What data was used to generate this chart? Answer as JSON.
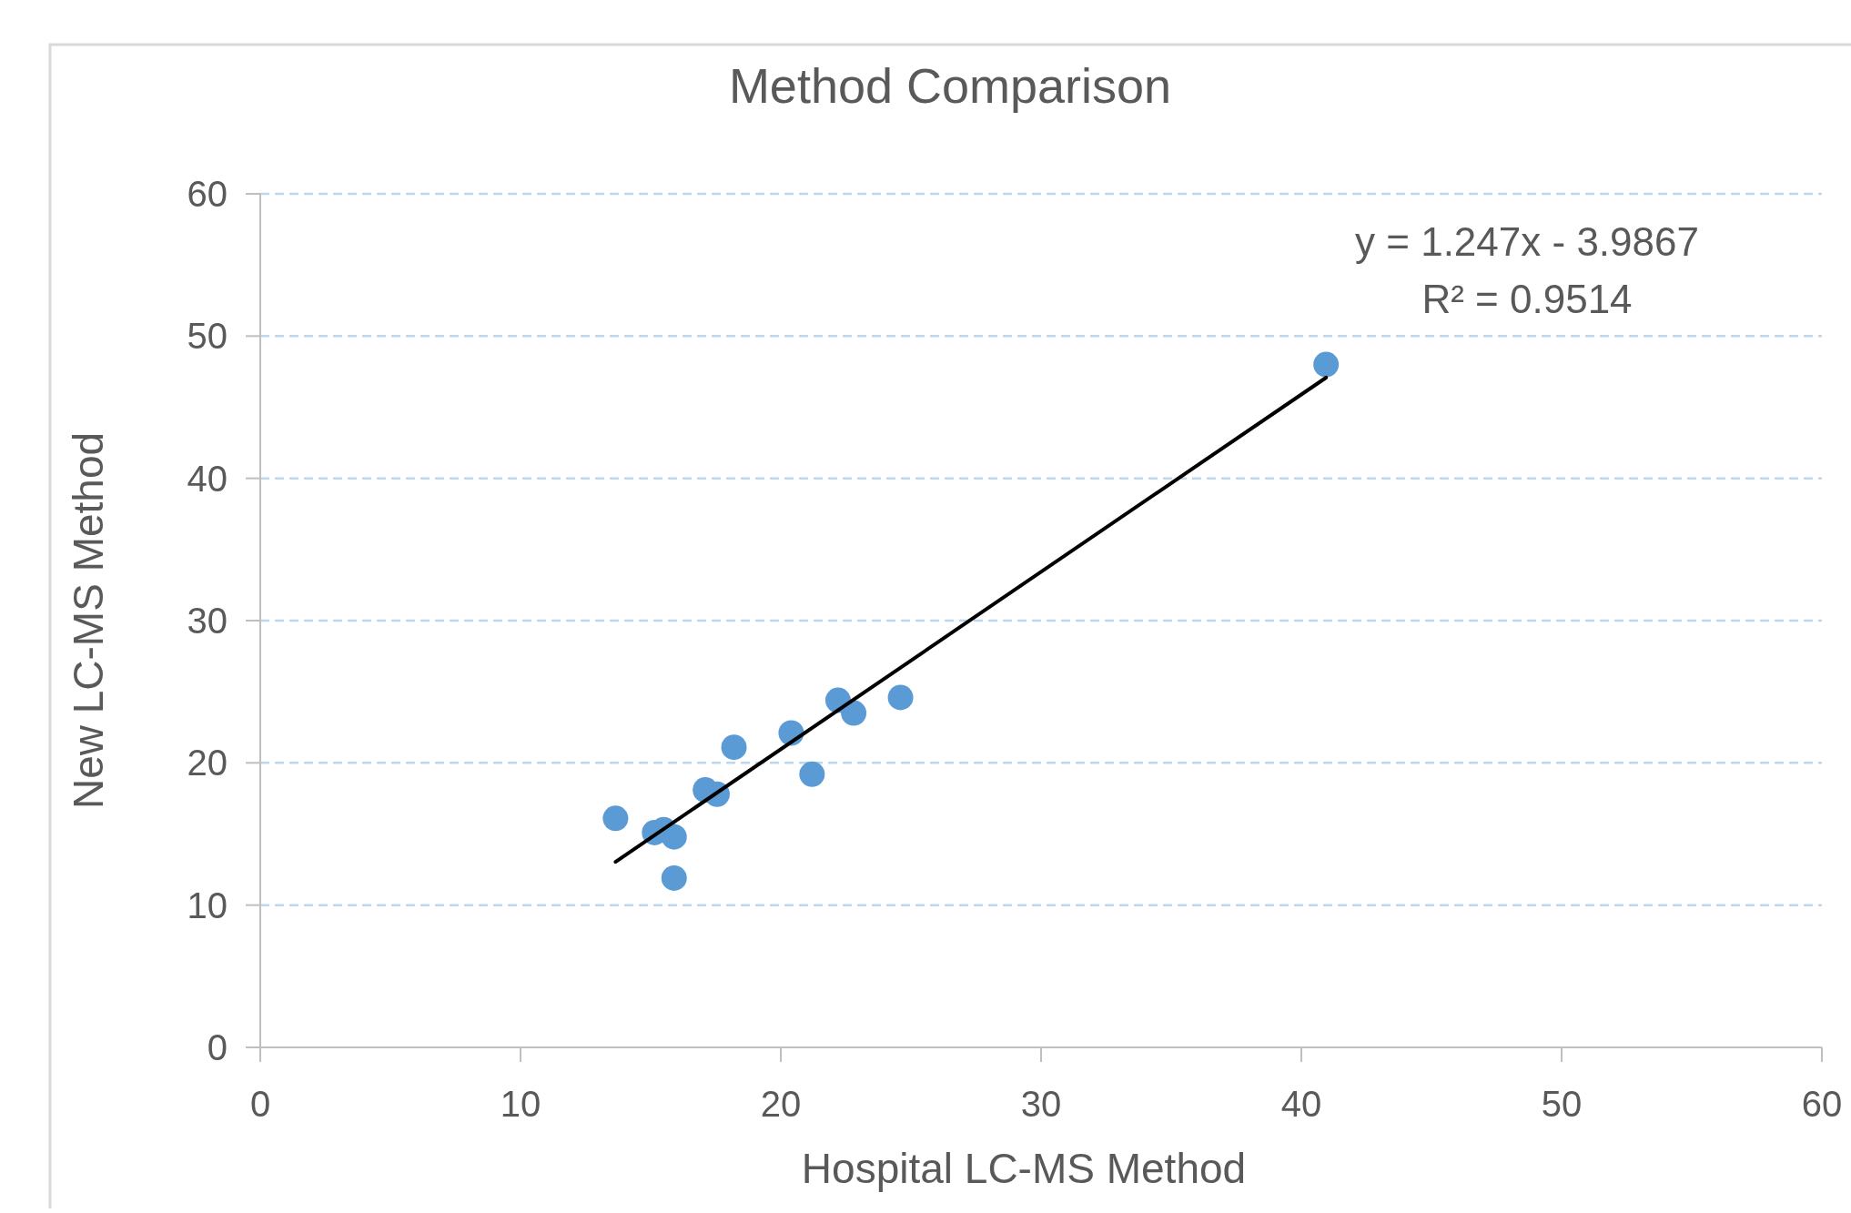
{
  "chart_data": {
    "type": "scatter",
    "title": "Method Comparison",
    "xlabel": "Hospital LC-MS Method",
    "ylabel": "New LC-MS Method",
    "xlim": [
      0,
      60
    ],
    "xticks": [
      0,
      10,
      20,
      30,
      40,
      50,
      60
    ],
    "ylim": [
      0,
      60
    ],
    "yticks": [
      0,
      10,
      20,
      30,
      40,
      50,
      60
    ],
    "grid": "y",
    "marker": "circle",
    "annotations": [
      "y = 1.247x - 3.9867",
      "R² = 0.9514"
    ],
    "series": [
      {
        "color": "#5b9bd5",
        "x": [
          13.65,
          15.15,
          15.5,
          15.9,
          15.9,
          17.1,
          17.55,
          18.2,
          20.4,
          21.2,
          22.2,
          22.8,
          24.6,
          40.95
        ],
        "values": [
          16.1,
          15.1,
          15.3,
          14.8,
          11.9,
          18.1,
          17.8,
          21.1,
          22.1,
          19.2,
          24.4,
          23.5,
          24.6,
          48.0
        ]
      },
      {
        "type": "line",
        "color": "#000000",
        "line_style": "solid",
        "marker": "none",
        "x": [
          13.65,
          40.95
        ],
        "values": [
          13.04,
          47.08
        ]
      }
    ]
  }
}
